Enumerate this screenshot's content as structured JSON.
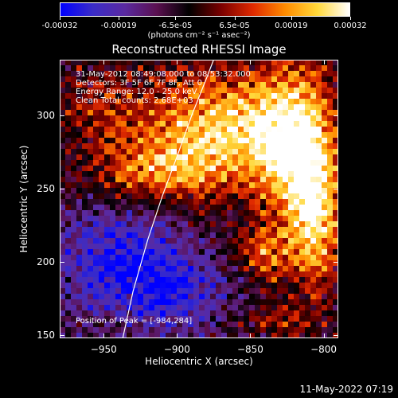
{
  "colorbar": {
    "ticks": [
      "-0.00032",
      "-0.00019",
      "-6.5e-05",
      "6.5e-05",
      "0.00019",
      "0.00032"
    ],
    "tick_values": [
      -0.00032,
      -0.00019,
      -6.5e-05,
      6.5e-05,
      0.00019,
      0.00032
    ],
    "units": "(photons cm⁻² s⁻¹ asec⁻²)",
    "stops": [
      "#0000ff",
      "#3a2cc8",
      "#5a2aa0",
      "#5a1050",
      "#000000",
      "#7a0000",
      "#e02a00",
      "#ff8c00",
      "#ffd83a",
      "#ffffff"
    ]
  },
  "chart_data": {
    "type": "heatmap",
    "title": "Reconstructed RHESSI Image",
    "xlabel": "Heliocentric X (arcsec)",
    "ylabel": "Heliocentric Y (arcsec)",
    "xlim": [
      -980,
      -790
    ],
    "ylim": [
      148,
      338
    ],
    "xticks": [
      -950,
      -900,
      -850,
      -800
    ],
    "yticks": [
      150,
      200,
      250,
      300
    ],
    "xtick_labels": [
      "−950",
      "−900",
      "−850",
      "−800"
    ],
    "ytick_labels": [
      "150",
      "200",
      "250",
      "300"
    ],
    "zlim": [
      -0.00032,
      0.00032
    ],
    "annotations": [
      "31-May-2012 08:49:08.000 to 08:53:32.000",
      "Detectors: 3F 5F 6F 7F 8F, Att 0",
      "Energy Range: 12.0 - 25.0 keV",
      "Clean     Total counts: 2.68E+03"
    ],
    "peak_label": "Position of Peak = [-984,284]",
    "limb_curve": [
      [
        -937,
        148
      ],
      [
        -930,
        180
      ],
      [
        -920,
        215
      ],
      [
        -910,
        245
      ],
      [
        -900,
        272
      ],
      [
        -890,
        300
      ],
      [
        -880,
        325
      ],
      [
        -875,
        338
      ]
    ],
    "emission_regions": [
      {
        "x": -870,
        "y": 290,
        "sx": 40,
        "sy": 28,
        "amp": 0.00034
      },
      {
        "x": -820,
        "y": 280,
        "sx": 18,
        "sy": 40,
        "amp": 0.00032
      },
      {
        "x": -805,
        "y": 230,
        "sx": 12,
        "sy": 35,
        "amp": 0.0003
      },
      {
        "x": -840,
        "y": 205,
        "sx": 14,
        "sy": 14,
        "amp": 0.0002
      },
      {
        "x": -915,
        "y": 262,
        "sx": 30,
        "sy": 14,
        "amp": 0.00018
      },
      {
        "x": -955,
        "y": 305,
        "sx": 22,
        "sy": 25,
        "amp": 0.0001
      },
      {
        "x": -830,
        "y": 160,
        "sx": 18,
        "sy": 10,
        "amp": 0.00012
      },
      {
        "x": -940,
        "y": 200,
        "sx": 30,
        "sy": 25,
        "amp": -0.0002
      },
      {
        "x": -900,
        "y": 180,
        "sx": 25,
        "sy": 20,
        "amp": -0.00015
      }
    ]
  },
  "footer": {
    "timestamp": "11-May-2022 07:19"
  }
}
